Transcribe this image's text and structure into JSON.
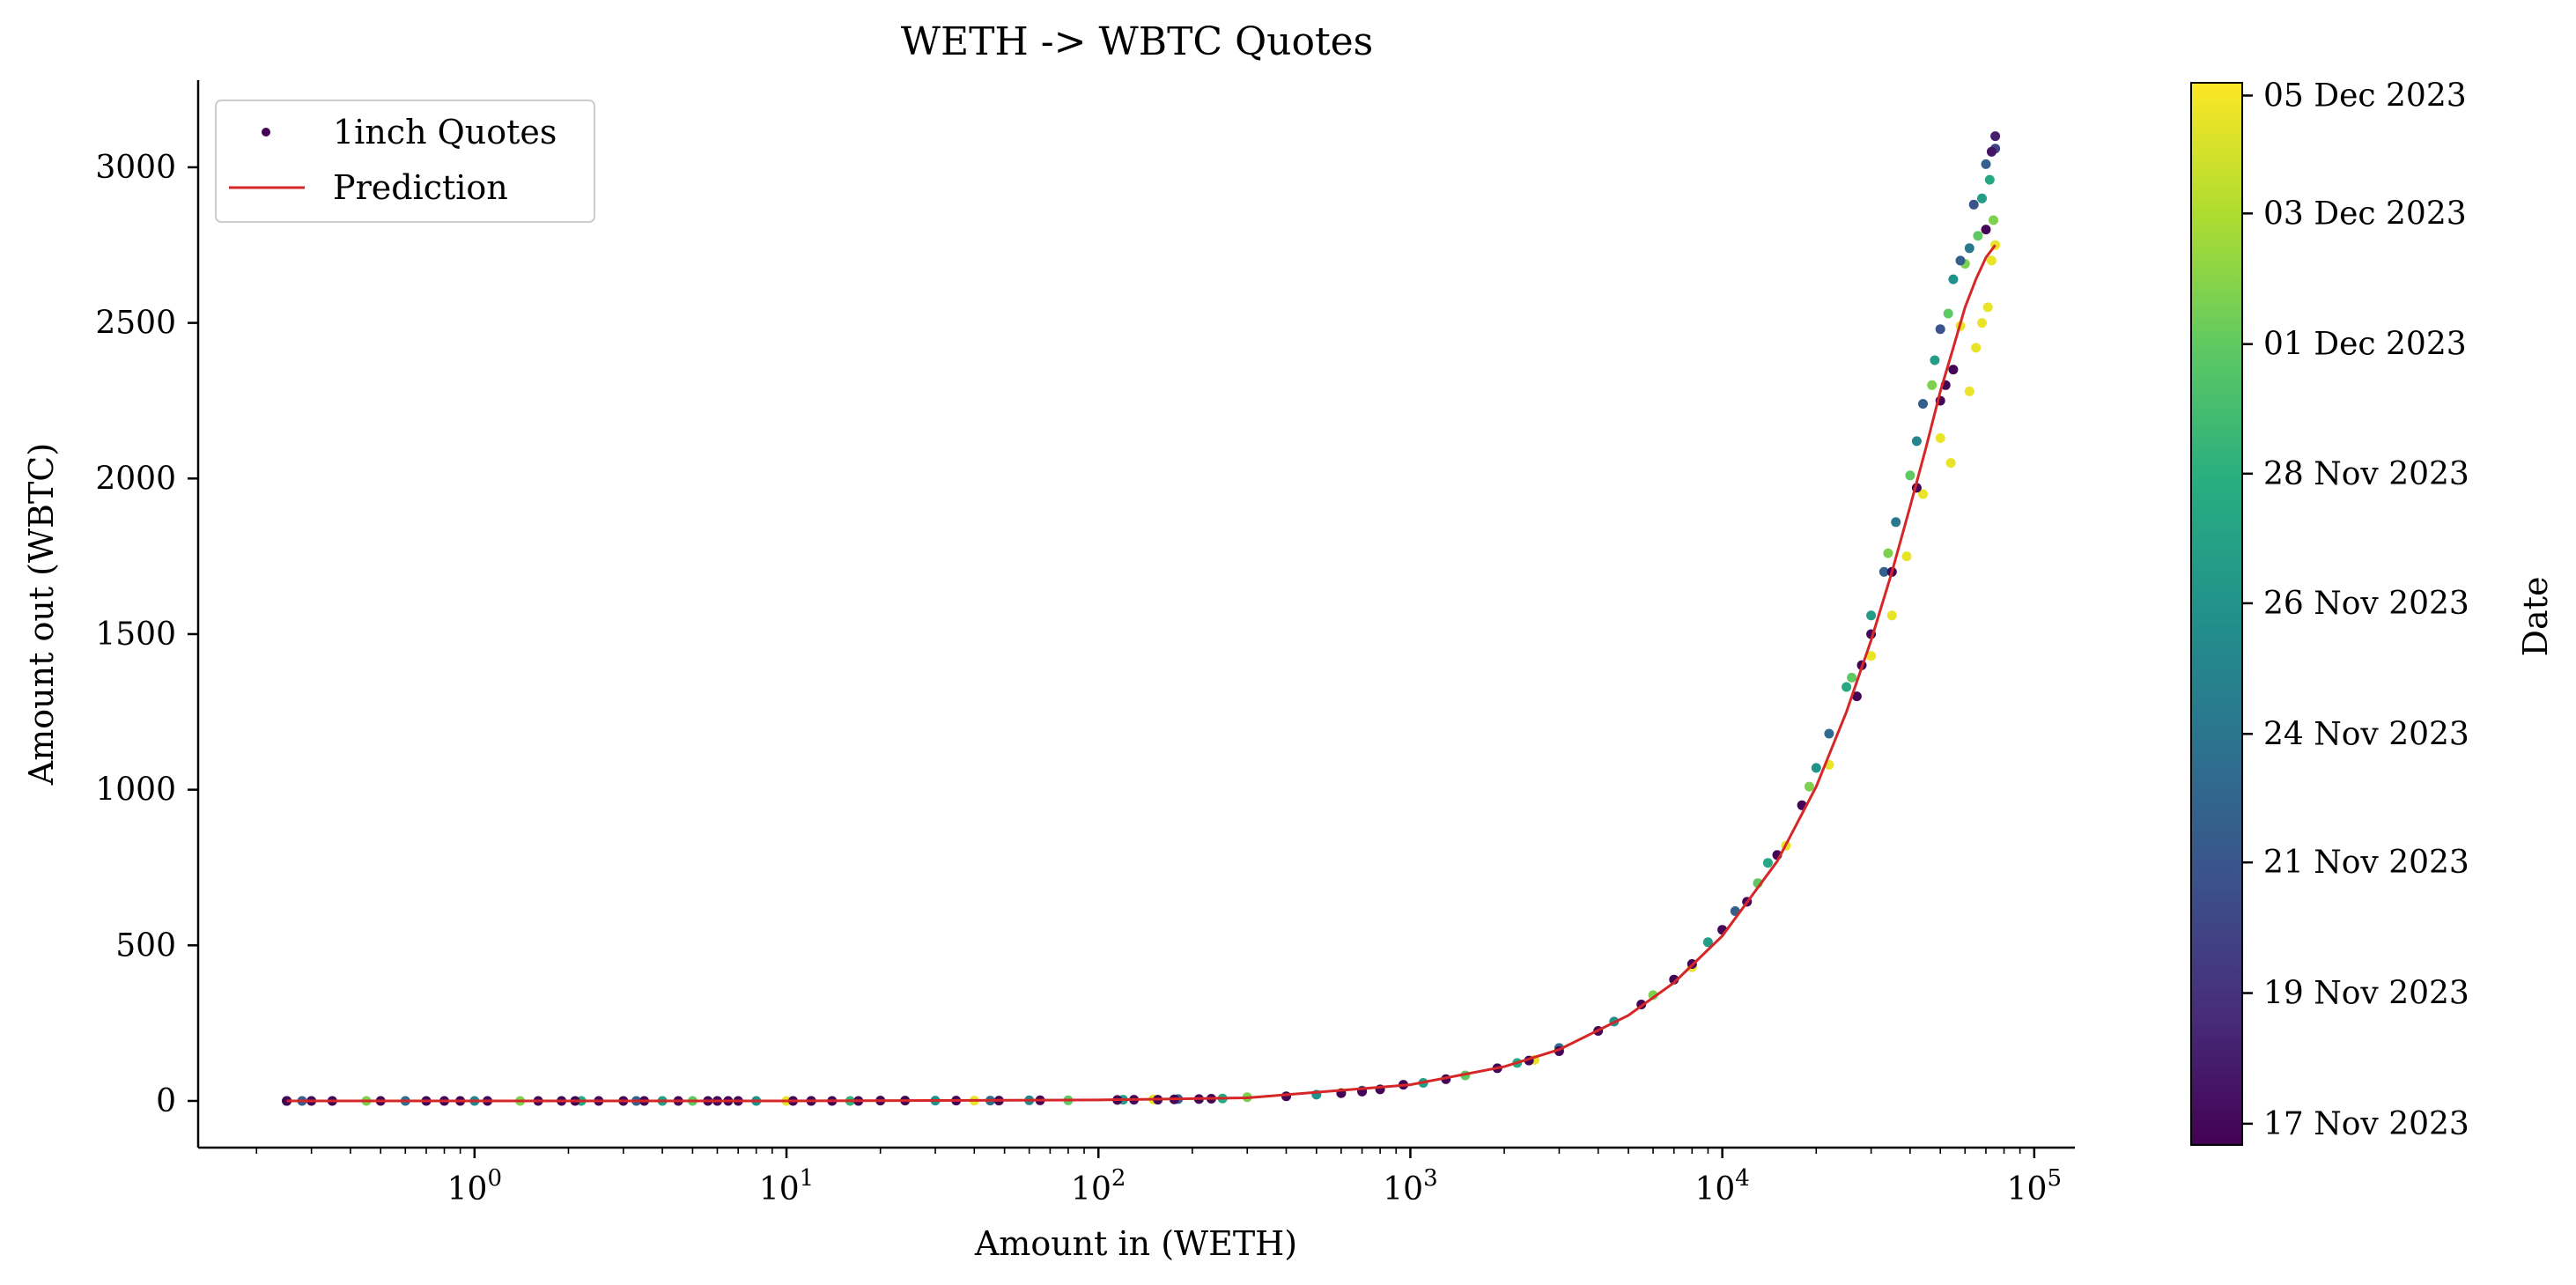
{
  "chart_data": {
    "type": "scatter",
    "title": "WETH -> WBTC Quotes",
    "xlabel": "Amount in (WETH)",
    "ylabel": "Amount out (WBTC)",
    "x_scale": "log",
    "xlim": [
      0.13,
      135000
    ],
    "ylim": [
      -150,
      3280
    ],
    "x_ticks": [
      {
        "value": 1,
        "base": "10",
        "exp": "0"
      },
      {
        "value": 10,
        "base": "10",
        "exp": "1"
      },
      {
        "value": 100,
        "base": "10",
        "exp": "2"
      },
      {
        "value": 1000,
        "base": "10",
        "exp": "3"
      },
      {
        "value": 10000,
        "base": "10",
        "exp": "4"
      },
      {
        "value": 100000,
        "base": "10",
        "exp": "5"
      }
    ],
    "y_ticks": [
      0,
      500,
      1000,
      1500,
      2000,
      2500,
      3000
    ],
    "grid": false,
    "legend": {
      "location": "upper left",
      "entries": [
        {
          "label": "1inch Quotes",
          "marker": "dot",
          "color": "#440154"
        },
        {
          "label": "Prediction",
          "marker": "line",
          "color": "#d62728"
        }
      ]
    },
    "colorbar": {
      "label": "Date",
      "colormap": "viridis",
      "tick_labels": [
        "17 Nov 2023",
        "19 Nov 2023",
        "21 Nov 2023",
        "24 Nov 2023",
        "26 Nov 2023",
        "28 Nov 2023",
        "01 Dec 2023",
        "03 Dec 2023",
        "05 Dec 2023"
      ],
      "tick_fractions": [
        0.02,
        0.143,
        0.266,
        0.387,
        0.51,
        0.632,
        0.754,
        0.877,
        0.988
      ]
    },
    "series": [
      {
        "name": "1inch Quotes",
        "marker": "dot",
        "points": [
          [
            0.25,
            0,
            0.01
          ],
          [
            0.3,
            0,
            0.01
          ],
          [
            0.35,
            0,
            0.01
          ],
          [
            0.5,
            0,
            0.01
          ],
          [
            0.7,
            0,
            0.01
          ],
          [
            0.8,
            0,
            0.01
          ],
          [
            0.9,
            0,
            0.01
          ],
          [
            1.1,
            0,
            0.01
          ],
          [
            1.6,
            0,
            0.01
          ],
          [
            1.9,
            0,
            0.01
          ],
          [
            2.1,
            0,
            0.01
          ],
          [
            2.5,
            0,
            0.01
          ],
          [
            3.0,
            0,
            0.01
          ],
          [
            3.5,
            0,
            0.01
          ],
          [
            4.5,
            0,
            0.01
          ],
          [
            5.6,
            0,
            0.01
          ],
          [
            6.0,
            0,
            0.01
          ],
          [
            6.5,
            0,
            0.01
          ],
          [
            7.0,
            0,
            0.01
          ],
          [
            10.5,
            0,
            0.01
          ],
          [
            12.0,
            0,
            0.01
          ],
          [
            14.0,
            0,
            0.01
          ],
          [
            17.0,
            0,
            0.01
          ],
          [
            20.0,
            1,
            0.01
          ],
          [
            24.0,
            1,
            0.01
          ],
          [
            35.0,
            1,
            0.01
          ],
          [
            48.0,
            1,
            0.01
          ],
          [
            65.0,
            2,
            0.01
          ],
          [
            115.0,
            3,
            0.01
          ],
          [
            130.0,
            4,
            0.01
          ],
          [
            155.0,
            4,
            0.01
          ],
          [
            175.0,
            5,
            0.01
          ],
          [
            210.0,
            6,
            0.01
          ],
          [
            230.0,
            7,
            0.01
          ],
          [
            400.0,
            15,
            0.01
          ],
          [
            600.0,
            25,
            0.01
          ],
          [
            700.0,
            30,
            0.01
          ],
          [
            800.0,
            37,
            0.01
          ],
          [
            950.0,
            52,
            0.01
          ],
          [
            1300.0,
            70,
            0.01
          ],
          [
            1900.0,
            105,
            0.01
          ],
          [
            2400.0,
            130,
            0.01
          ],
          [
            3000.0,
            160,
            0.01
          ],
          [
            4000.0,
            225,
            0.01
          ],
          [
            5500.0,
            310,
            0.01
          ],
          [
            7000.0,
            390,
            0.01
          ],
          [
            8000.0,
            440,
            0.01
          ],
          [
            10000.0,
            550,
            0.01
          ],
          [
            12000.0,
            640,
            0.01
          ],
          [
            15000.0,
            790,
            0.01
          ],
          [
            18000.0,
            950,
            0.01
          ],
          [
            27000.0,
            1300,
            0.01
          ],
          [
            28000.0,
            1400,
            0.01
          ],
          [
            30000.0,
            1500,
            0.01
          ],
          [
            35000.0,
            1700,
            0.01
          ],
          [
            42000.0,
            1970,
            0.01
          ],
          [
            50000.0,
            2250,
            0.01
          ],
          [
            52000.0,
            2300,
            0.01
          ],
          [
            55000.0,
            2350,
            0.01
          ],
          [
            70000.0,
            2800,
            0.01
          ],
          [
            73000.0,
            3050,
            0.05
          ],
          [
            75000.0,
            3100,
            0.08
          ],
          [
            0.25,
            0,
            0.4
          ],
          [
            1.0,
            0,
            0.45
          ],
          [
            2.2,
            0,
            0.6
          ],
          [
            4.0,
            0,
            0.55
          ],
          [
            8.0,
            0,
            0.5
          ],
          [
            16.0,
            0,
            0.65
          ],
          [
            30.0,
            1,
            0.5
          ],
          [
            60.0,
            2,
            0.45
          ],
          [
            120.0,
            4,
            0.55
          ],
          [
            250.0,
            8,
            0.6
          ],
          [
            500.0,
            20,
            0.5
          ],
          [
            1100.0,
            58,
            0.55
          ],
          [
            2200.0,
            122,
            0.6
          ],
          [
            4500.0,
            255,
            0.5
          ],
          [
            9000.0,
            510,
            0.55
          ],
          [
            14000.0,
            765,
            0.6
          ],
          [
            20000.0,
            1070,
            0.5
          ],
          [
            25000.0,
            1330,
            0.6
          ],
          [
            30000.0,
            1560,
            0.55
          ],
          [
            36000.0,
            1860,
            0.4
          ],
          [
            42000.0,
            2120,
            0.45
          ],
          [
            48000.0,
            2380,
            0.55
          ],
          [
            55000.0,
            2640,
            0.5
          ],
          [
            62000.0,
            2740,
            0.4
          ],
          [
            68000.0,
            2900,
            0.55
          ],
          [
            72000.0,
            2960,
            0.6
          ],
          [
            0.28,
            0,
            0.3
          ],
          [
            0.6,
            0,
            0.35
          ],
          [
            3.3,
            0,
            0.3
          ],
          [
            12.0,
            0,
            0.3
          ],
          [
            45.0,
            1,
            0.35
          ],
          [
            180.0,
            6,
            0.3
          ],
          [
            700.0,
            33,
            0.3
          ],
          [
            3000.0,
            170,
            0.35
          ],
          [
            11000.0,
            610,
            0.3
          ],
          [
            22000.0,
            1180,
            0.35
          ],
          [
            33000.0,
            1700,
            0.3
          ],
          [
            44000.0,
            2240,
            0.3
          ],
          [
            50000.0,
            2480,
            0.25
          ],
          [
            58000.0,
            2700,
            0.3
          ],
          [
            64000.0,
            2880,
            0.25
          ],
          [
            70000.0,
            3010,
            0.3
          ],
          [
            75000.0,
            3060,
            0.2
          ],
          [
            0.25,
            0,
            0.75
          ],
          [
            0.45,
            0,
            0.8
          ],
          [
            1.4,
            0,
            0.8
          ],
          [
            5.0,
            0,
            0.75
          ],
          [
            20.0,
            1,
            0.8
          ],
          [
            80.0,
            2,
            0.75
          ],
          [
            300.0,
            12,
            0.8
          ],
          [
            1500.0,
            82,
            0.75
          ],
          [
            6000.0,
            340,
            0.8
          ],
          [
            13000.0,
            700,
            0.75
          ],
          [
            19000.0,
            1010,
            0.8
          ],
          [
            26000.0,
            1360,
            0.75
          ],
          [
            34000.0,
            1760,
            0.8
          ],
          [
            40000.0,
            2010,
            0.75
          ],
          [
            47000.0,
            2300,
            0.8
          ],
          [
            53000.0,
            2530,
            0.75
          ],
          [
            60000.0,
            2690,
            0.8
          ],
          [
            66000.0,
            2780,
            0.75
          ],
          [
            74000.0,
            2830,
            0.8
          ],
          [
            0.25,
            0,
            0.97
          ],
          [
            0.9,
            0,
            0.97
          ],
          [
            3.0,
            0,
            0.97
          ],
          [
            10.0,
            0,
            0.97
          ],
          [
            40.0,
            1,
            0.97
          ],
          [
            150.0,
            5,
            0.97
          ],
          [
            600.0,
            26,
            0.97
          ],
          [
            2500.0,
            132,
            0.97
          ],
          [
            8000.0,
            430,
            0.97
          ],
          [
            16000.0,
            820,
            0.97
          ],
          [
            22000.0,
            1080,
            0.97
          ],
          [
            30000.0,
            1430,
            0.97
          ],
          [
            35000.0,
            1560,
            0.97
          ],
          [
            39000.0,
            1750,
            0.97
          ],
          [
            44000.0,
            1950,
            0.97
          ],
          [
            50000.0,
            2130,
            0.97
          ],
          [
            54000.0,
            2050,
            0.97
          ],
          [
            58000.0,
            2490,
            0.97
          ],
          [
            62000.0,
            2280,
            0.97
          ],
          [
            65000.0,
            2420,
            0.97
          ],
          [
            68000.0,
            2500,
            0.97
          ],
          [
            71000.0,
            2550,
            0.97
          ],
          [
            73000.0,
            2700,
            0.97
          ],
          [
            75000.0,
            2750,
            0.97
          ]
        ]
      },
      {
        "name": "Prediction",
        "marker": "line",
        "points": [
          [
            0.25,
            0
          ],
          [
            1,
            0
          ],
          [
            10,
            0
          ],
          [
            100,
            3
          ],
          [
            300,
            10
          ],
          [
            1000,
            52
          ],
          [
            2000,
            110
          ],
          [
            3000,
            165
          ],
          [
            5000,
            275
          ],
          [
            7000,
            380
          ],
          [
            10000,
            530
          ],
          [
            15000,
            770
          ],
          [
            20000,
            1010
          ],
          [
            25000,
            1250
          ],
          [
            30000,
            1480
          ],
          [
            35000,
            1700
          ],
          [
            40000,
            1910
          ],
          [
            45000,
            2100
          ],
          [
            50000,
            2280
          ],
          [
            55000,
            2420
          ],
          [
            60000,
            2550
          ],
          [
            65000,
            2640
          ],
          [
            70000,
            2710
          ],
          [
            75000,
            2750
          ]
        ]
      }
    ]
  }
}
